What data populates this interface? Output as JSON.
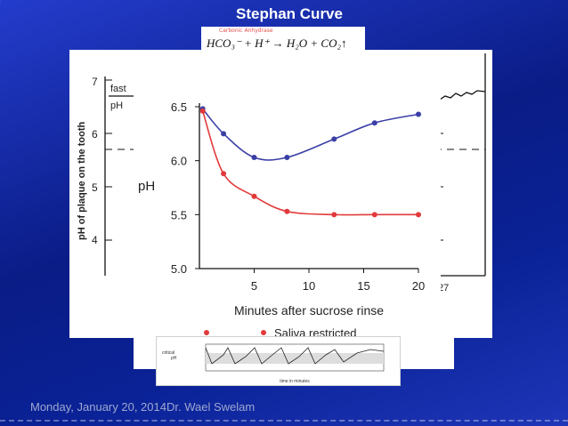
{
  "slide": {
    "title": "Stephan Curve",
    "equation_small": "Carbonic Anhydrase",
    "equation_main": "HCO₃⁻ + H⁺ → H₂O + CO₂↑",
    "footer": "Monday, January 20, 2014Dr. Wael Swelam"
  },
  "background_chart": {
    "ylabel": "pH of plaque on the tooth",
    "yticks": [
      "7",
      "6",
      "5",
      "4"
    ],
    "legend_fast": "fast",
    "legend_ph": "pH",
    "xtick_right": "27"
  },
  "chart_data": {
    "type": "line",
    "xlabel": "Minutes after sucrose rinse",
    "ylabel": "pH",
    "xlim": [
      0,
      20
    ],
    "ylim": [
      5.0,
      6.5
    ],
    "xticks": [
      5,
      10,
      15,
      20
    ],
    "yticks": [
      5.0,
      5.5,
      6.0,
      6.5
    ],
    "grid": false,
    "series": [
      {
        "color": "#3a3fa6",
        "x": [
          0.3,
          2.2,
          5,
          8,
          12.3,
          16,
          20
        ],
        "y": [
          6.48,
          6.25,
          6.03,
          6.03,
          6.2,
          6.35,
          6.43
        ]
      },
      {
        "name": "Saliva restricted",
        "color": "#e23a3a",
        "x": [
          0.3,
          2.2,
          5,
          8,
          12.3,
          16,
          20
        ],
        "y": [
          6.46,
          5.88,
          5.67,
          5.53,
          5.5,
          5.5,
          5.5
        ]
      }
    ],
    "legend_label": "Saliva restricted"
  },
  "thumbnail": {
    "ylabel1": "critical",
    "ylabel2": "pH",
    "xlabel": "time in minutes"
  }
}
